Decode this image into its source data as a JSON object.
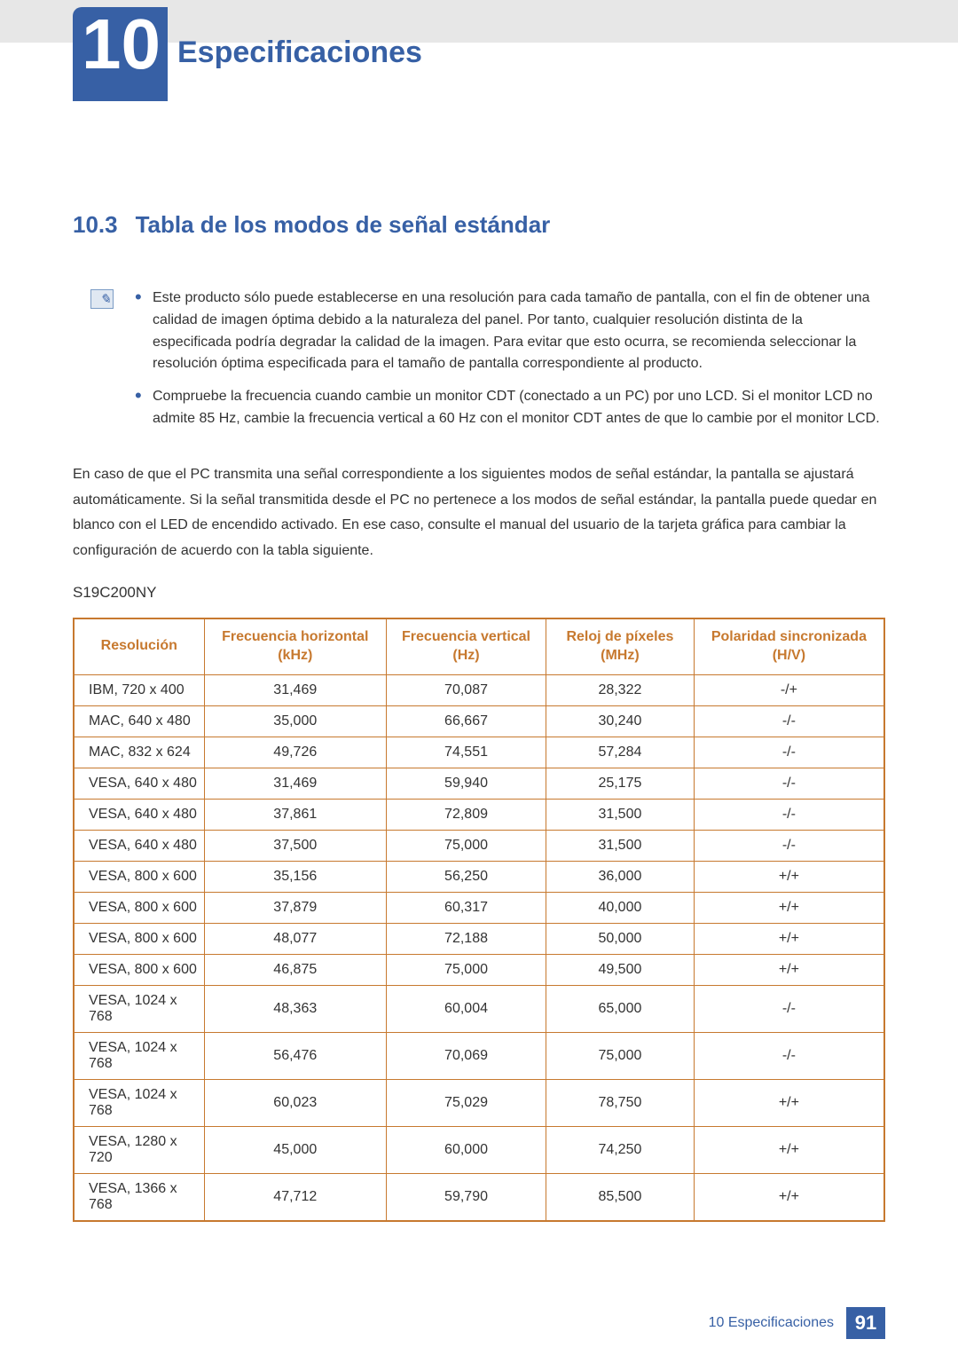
{
  "chapter": {
    "number": "10",
    "title": "Especificaciones"
  },
  "section": {
    "number": "10.3",
    "title": "Tabla de los modos de señal estándar"
  },
  "notes": {
    "bullets": [
      "Este producto sólo puede establecerse en una resolución para cada tamaño de pantalla, con el fin de obtener una calidad de imagen óptima debido a la naturaleza del panel. Por tanto, cualquier resolución distinta de la especificada podría degradar la calidad de la imagen. Para evitar que esto ocurra, se recomienda seleccionar la resolución óptima especificada para el tamaño de pantalla correspondiente al producto.",
      "Compruebe la frecuencia cuando cambie un monitor CDT (conectado a un PC) por uno LCD. Si el monitor LCD no admite 85 Hz, cambie la frecuencia vertical a 60 Hz con el monitor CDT antes de que lo cambie por el monitor LCD."
    ]
  },
  "paragraph": "En caso de que el PC transmita una señal correspondiente a los siguientes modos de señal estándar, la pantalla se ajustará automáticamente. Si la señal transmitida desde el PC no pertenece a los modos de señal estándar, la pantalla puede quedar en blanco con el LED de encendido activado. En ese caso, consulte el manual del usuario de la tarjeta gráfica para cambiar la configuración de acuerdo con la tabla siguiente.",
  "model": "S19C200NY",
  "table": {
    "columns": [
      "Resolución",
      "Frecuencia horizontal (kHz)",
      "Frecuencia vertical (Hz)",
      "Reloj de píxeles (MHz)",
      "Polaridad sincronizada (H/V)"
    ],
    "rows": [
      [
        "IBM, 720 x 400",
        "31,469",
        "70,087",
        "28,322",
        "-/+"
      ],
      [
        "MAC, 640 x 480",
        "35,000",
        "66,667",
        "30,240",
        "-/-"
      ],
      [
        "MAC, 832 x 624",
        "49,726",
        "74,551",
        "57,284",
        "-/-"
      ],
      [
        "VESA, 640 x 480",
        "31,469",
        "59,940",
        "25,175",
        "-/-"
      ],
      [
        "VESA, 640 x 480",
        "37,861",
        "72,809",
        "31,500",
        "-/-"
      ],
      [
        "VESA, 640 x 480",
        "37,500",
        "75,000",
        "31,500",
        "-/-"
      ],
      [
        "VESA, 800 x 600",
        "35,156",
        "56,250",
        "36,000",
        "+/+"
      ],
      [
        "VESA, 800 x 600",
        "37,879",
        "60,317",
        "40,000",
        "+/+"
      ],
      [
        "VESA, 800 x 600",
        "48,077",
        "72,188",
        "50,000",
        "+/+"
      ],
      [
        "VESA, 800 x 600",
        "46,875",
        "75,000",
        "49,500",
        "+/+"
      ],
      [
        "VESA, 1024 x 768",
        "48,363",
        "60,004",
        "65,000",
        "-/-"
      ],
      [
        "VESA, 1024 x 768",
        "56,476",
        "70,069",
        "75,000",
        "-/-"
      ],
      [
        "VESA, 1024 x 768",
        "60,023",
        "75,029",
        "78,750",
        "+/+"
      ],
      [
        "VESA, 1280 x 720",
        "45,000",
        "60,000",
        "74,250",
        "+/+"
      ],
      [
        "VESA, 1366 x 768",
        "47,712",
        "59,790",
        "85,500",
        "+/+"
      ]
    ],
    "border_color": "#c7792f",
    "header_text_color": "#c7792f"
  },
  "footer": {
    "label": "10 Especificaciones",
    "page": "91"
  }
}
